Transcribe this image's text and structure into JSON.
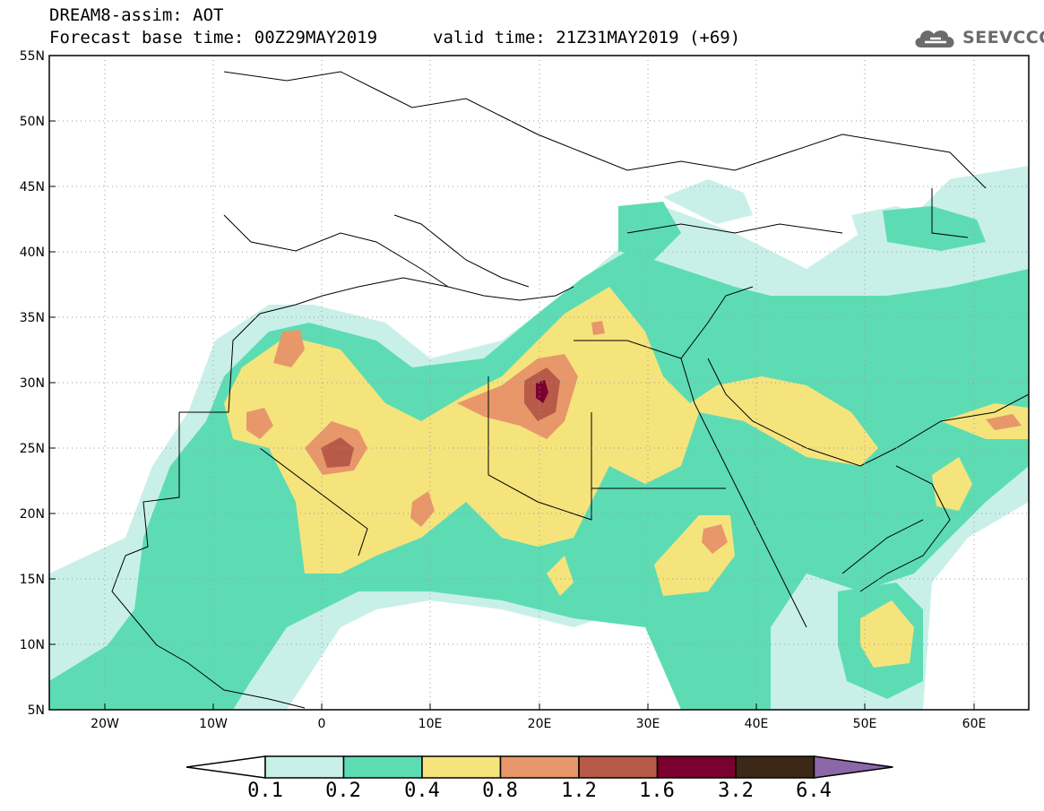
{
  "header": {
    "line1": "DREAM8-assim: AOT",
    "base_time": "Forecast base time: 00Z29MAY2019",
    "valid_time": "valid time: 21Z31MAY2019 (+69)",
    "logo_text": "SEEVCCC",
    "logo_icon": "cloud-icon"
  },
  "map": {
    "lat_labels": [
      "55N",
      "50N",
      "45N",
      "40N",
      "35N",
      "30N",
      "25N",
      "20N",
      "15N",
      "10N",
      "5N"
    ],
    "lon_labels": [
      "20W",
      "10W",
      "0",
      "10E",
      "20E",
      "30E",
      "40E",
      "50E",
      "60E"
    ],
    "lat_range": [
      5,
      55
    ],
    "lon_range": [
      -25,
      65
    ],
    "grid": "dotted"
  },
  "colorbar": {
    "labels": [
      "0.1",
      "0.2",
      "0.4",
      "0.8",
      "1.2",
      "1.6",
      "3.2",
      "6.4"
    ],
    "colors": [
      "#ffffff",
      "#c8f0e8",
      "#5ddcb4",
      "#f5e47c",
      "#e8976a",
      "#b85a48",
      "#7a0030",
      "#3d2818",
      "#8c68a8"
    ]
  }
}
